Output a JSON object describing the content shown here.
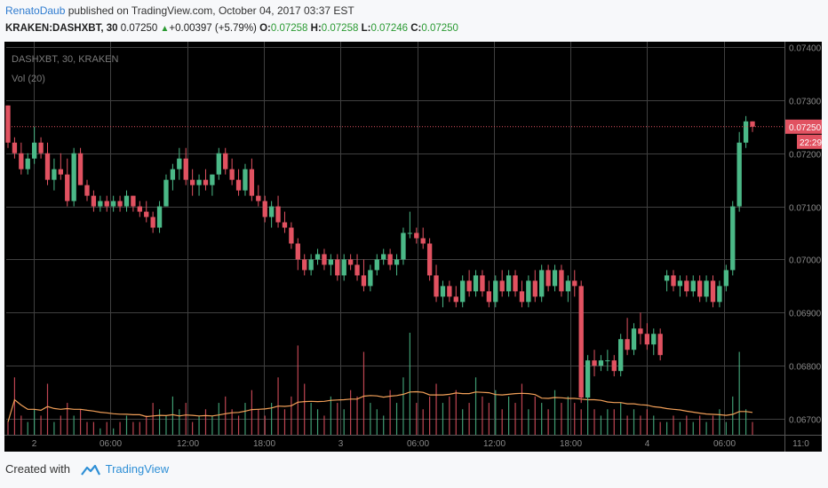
{
  "header": {
    "author": "RenatoDaub",
    "published_text": " published on TradingView.com, October 04, 2017 03:37 EST",
    "symbol": "KRAKEN:DASHXBT, 30",
    "last": "0.07250",
    "change_arrow": "▲",
    "change": "+0.00397 (+5.79%)",
    "o_label": "O:",
    "o_val": "0.07258",
    "h_label": "H:",
    "h_val": "0.07258",
    "l_label": "L:",
    "l_val": "0.07246",
    "c_label": "C:",
    "c_val": "0.07250"
  },
  "footer": {
    "created": "Created with",
    "brand": "TradingView"
  },
  "colors": {
    "bg": "#000000",
    "grid": "#404040",
    "up": "#4bb887",
    "down": "#e15261",
    "vol_ma": "#f19f58",
    "axis_text": "#8a8a8a"
  },
  "chart_data": {
    "type": "candlestick",
    "legend_lines": [
      "DASHXBT, 30, KRAKEN",
      "Vol (20)"
    ],
    "ylim": [
      0.0667,
      0.0741
    ],
    "y_ticks": [
      "0.07400",
      "0.07300",
      "0.07200",
      "0.07100",
      "0.07000",
      "0.06900",
      "0.06800",
      "0.06700"
    ],
    "x_ticks": [
      "2",
      "06:00",
      "12:00",
      "18:00",
      "3",
      "06:00",
      "12:00",
      "18:00",
      "4",
      "06:00",
      "11:0"
    ],
    "price_label": "0.07250",
    "countdown_label": "22:29",
    "ohlc": [
      [
        0.0729,
        0.0729,
        0.0721,
        0.0722
      ],
      [
        0.0722,
        0.0723,
        0.0719,
        0.072
      ],
      [
        0.072,
        0.0722,
        0.0716,
        0.0717
      ],
      [
        0.0717,
        0.072,
        0.0716,
        0.0719
      ],
      [
        0.0719,
        0.0725,
        0.0718,
        0.0722
      ],
      [
        0.0722,
        0.0723,
        0.0719,
        0.072
      ],
      [
        0.072,
        0.0722,
        0.0714,
        0.0715
      ],
      [
        0.0715,
        0.0719,
        0.0713,
        0.0717
      ],
      [
        0.0717,
        0.072,
        0.0715,
        0.0716
      ],
      [
        0.0716,
        0.0719,
        0.071,
        0.0711
      ],
      [
        0.0711,
        0.0721,
        0.071,
        0.072
      ],
      [
        0.072,
        0.0721,
        0.0714,
        0.0714
      ],
      [
        0.0714,
        0.0715,
        0.0711,
        0.0712
      ],
      [
        0.0712,
        0.0713,
        0.0709,
        0.071
      ],
      [
        0.071,
        0.0712,
        0.0709,
        0.0711
      ],
      [
        0.0711,
        0.0712,
        0.0709,
        0.071
      ],
      [
        0.071,
        0.0712,
        0.0709,
        0.0711
      ],
      [
        0.0711,
        0.0712,
        0.0709,
        0.071
      ],
      [
        0.071,
        0.0713,
        0.0709,
        0.0712
      ],
      [
        0.0712,
        0.0712,
        0.0709,
        0.071
      ],
      [
        0.071,
        0.0711,
        0.0708,
        0.0709
      ],
      [
        0.0709,
        0.0711,
        0.0707,
        0.0708
      ],
      [
        0.0708,
        0.0709,
        0.0705,
        0.0706
      ],
      [
        0.0706,
        0.0711,
        0.0705,
        0.071
      ],
      [
        0.071,
        0.0716,
        0.071,
        0.0715
      ],
      [
        0.0715,
        0.0718,
        0.0713,
        0.0717
      ],
      [
        0.0717,
        0.0721,
        0.0715,
        0.0719
      ],
      [
        0.0719,
        0.0721,
        0.0714,
        0.0715
      ],
      [
        0.0715,
        0.0717,
        0.0712,
        0.0714
      ],
      [
        0.0714,
        0.0716,
        0.0712,
        0.0715
      ],
      [
        0.0715,
        0.0717,
        0.0713,
        0.0714
      ],
      [
        0.0714,
        0.0716,
        0.0712,
        0.0716
      ],
      [
        0.0716,
        0.0721,
        0.0715,
        0.072
      ],
      [
        0.072,
        0.0721,
        0.0716,
        0.0717
      ],
      [
        0.0717,
        0.0719,
        0.0714,
        0.0715
      ],
      [
        0.0715,
        0.0717,
        0.0712,
        0.0713
      ],
      [
        0.0713,
        0.0718,
        0.0712,
        0.0717
      ],
      [
        0.0717,
        0.0719,
        0.0711,
        0.0712
      ],
      [
        0.0712,
        0.0714,
        0.071,
        0.0711
      ],
      [
        0.0711,
        0.0712,
        0.0707,
        0.0708
      ],
      [
        0.0708,
        0.0711,
        0.0706,
        0.071
      ],
      [
        0.071,
        0.0712,
        0.0706,
        0.0707
      ],
      [
        0.0707,
        0.0709,
        0.0705,
        0.0706
      ],
      [
        0.0706,
        0.0707,
        0.0702,
        0.0703
      ],
      [
        0.0703,
        0.0704,
        0.0698,
        0.07
      ],
      [
        0.07,
        0.0701,
        0.0697,
        0.0698
      ],
      [
        0.0698,
        0.0701,
        0.0697,
        0.07
      ],
      [
        0.07,
        0.0702,
        0.0699,
        0.0701
      ],
      [
        0.0701,
        0.0702,
        0.0698,
        0.0699
      ],
      [
        0.0699,
        0.0701,
        0.0697,
        0.07
      ],
      [
        0.07,
        0.0701,
        0.0696,
        0.0697
      ],
      [
        0.0697,
        0.0701,
        0.0696,
        0.07
      ],
      [
        0.07,
        0.0701,
        0.0698,
        0.0699
      ],
      [
        0.0699,
        0.0701,
        0.0696,
        0.0697
      ],
      [
        0.0697,
        0.07,
        0.0694,
        0.0695
      ],
      [
        0.0695,
        0.0699,
        0.0694,
        0.0698
      ],
      [
        0.0698,
        0.0701,
        0.0697,
        0.07
      ],
      [
        0.07,
        0.0702,
        0.0699,
        0.0701
      ],
      [
        0.0701,
        0.0702,
        0.0698,
        0.0699
      ],
      [
        0.0699,
        0.0701,
        0.0697,
        0.07
      ],
      [
        0.07,
        0.0706,
        0.0699,
        0.0705
      ],
      [
        0.0705,
        0.0709,
        0.0704,
        0.0705
      ],
      [
        0.0705,
        0.0706,
        0.0703,
        0.0704
      ],
      [
        0.0704,
        0.0706,
        0.0702,
        0.0703
      ],
      [
        0.0703,
        0.0704,
        0.0696,
        0.0697
      ],
      [
        0.0697,
        0.0699,
        0.0692,
        0.0693
      ],
      [
        0.0693,
        0.0696,
        0.0691,
        0.0695
      ],
      [
        0.0695,
        0.0696,
        0.0692,
        0.0693
      ],
      [
        0.0693,
        0.0695,
        0.0691,
        0.0692
      ],
      [
        0.0692,
        0.0697,
        0.0691,
        0.0696
      ],
      [
        0.0696,
        0.0698,
        0.0693,
        0.0694
      ],
      [
        0.0694,
        0.0698,
        0.0693,
        0.0697
      ],
      [
        0.0697,
        0.0698,
        0.0693,
        0.0694
      ],
      [
        0.0694,
        0.0696,
        0.0691,
        0.0692
      ],
      [
        0.0692,
        0.0697,
        0.0691,
        0.0696
      ],
      [
        0.0696,
        0.0698,
        0.0693,
        0.0694
      ],
      [
        0.0694,
        0.0698,
        0.0693,
        0.0697
      ],
      [
        0.0697,
        0.0698,
        0.0693,
        0.0694
      ],
      [
        0.0694,
        0.0696,
        0.0691,
        0.0692
      ],
      [
        0.0692,
        0.0697,
        0.0691,
        0.0696
      ],
      [
        0.0696,
        0.0698,
        0.0692,
        0.0693
      ],
      [
        0.0693,
        0.0699,
        0.0692,
        0.0698
      ],
      [
        0.0698,
        0.0699,
        0.0694,
        0.0695
      ],
      [
        0.0695,
        0.0699,
        0.0694,
        0.0698
      ],
      [
        0.0698,
        0.0699,
        0.0693,
        0.0694
      ],
      [
        0.0694,
        0.0697,
        0.0692,
        0.0696
      ],
      [
        0.0696,
        0.0698,
        0.0693,
        0.0695
      ],
      [
        0.0695,
        0.0696,
        0.0673,
        0.0674
      ],
      [
        0.0674,
        0.0682,
        0.0673,
        0.0681
      ],
      [
        0.0681,
        0.0683,
        0.0678,
        0.068
      ],
      [
        0.068,
        0.0682,
        0.0679,
        0.0681
      ],
      [
        0.0681,
        0.0683,
        0.0679,
        0.0681
      ],
      [
        0.0681,
        0.0682,
        0.0678,
        0.0679
      ],
      [
        0.0679,
        0.0686,
        0.0678,
        0.0685
      ],
      [
        0.0685,
        0.0689,
        0.0682,
        0.0683
      ],
      [
        0.0683,
        0.0688,
        0.0682,
        0.0687
      ],
      [
        0.0687,
        0.069,
        0.0684,
        0.0686
      ],
      [
        0.0686,
        0.0688,
        0.0683,
        0.0684
      ],
      [
        0.0684,
        0.0687,
        0.0682,
        0.0686
      ],
      [
        0.0686,
        0.0687,
        0.0681,
        0.0682
      ],
      [
        0.0696,
        0.0698,
        0.0694,
        0.0697
      ],
      [
        0.0697,
        0.0698,
        0.0694,
        0.0695
      ],
      [
        0.0695,
        0.0697,
        0.0693,
        0.0696
      ],
      [
        0.0696,
        0.0697,
        0.0693,
        0.0694
      ],
      [
        0.0694,
        0.0697,
        0.0693,
        0.0696
      ],
      [
        0.0696,
        0.0697,
        0.0692,
        0.0693
      ],
      [
        0.0693,
        0.0697,
        0.0692,
        0.0696
      ],
      [
        0.0696,
        0.0697,
        0.0691,
        0.0692
      ],
      [
        0.0692,
        0.0696,
        0.0691,
        0.0695
      ],
      [
        0.0695,
        0.0699,
        0.0694,
        0.0698
      ],
      [
        0.0698,
        0.0711,
        0.0697,
        0.071
      ],
      [
        0.071,
        0.0724,
        0.0709,
        0.0722
      ],
      [
        0.0722,
        0.0727,
        0.0721,
        0.0726
      ],
      [
        0.0726,
        0.0726,
        0.0724,
        0.0725
      ]
    ],
    "volume": [
      2,
      9,
      3,
      2,
      4,
      3,
      8,
      2,
      3,
      5,
      3,
      4,
      2,
      2,
      1,
      2,
      1,
      2,
      3,
      2,
      2,
      3,
      5,
      4,
      3,
      6,
      4,
      5,
      2,
      3,
      4,
      3,
      5,
      6,
      4,
      3,
      5,
      7,
      4,
      3,
      5,
      9,
      4,
      6,
      14,
      8,
      5,
      4,
      3,
      6,
      5,
      4,
      7,
      6,
      13,
      5,
      4,
      3,
      7,
      5,
      9,
      16,
      5,
      4,
      6,
      8,
      5,
      6,
      7,
      4,
      5,
      9,
      6,
      5,
      7,
      4,
      6,
      5,
      8,
      4,
      6,
      5,
      4,
      7,
      5,
      6,
      5,
      4,
      5,
      4,
      3,
      4,
      4,
      5,
      3,
      4,
      3,
      4,
      3,
      2,
      2,
      3,
      2,
      3,
      2,
      3,
      2,
      3,
      4,
      2,
      6,
      13,
      4,
      2
    ],
    "vol_ma_max": 4.0
  }
}
